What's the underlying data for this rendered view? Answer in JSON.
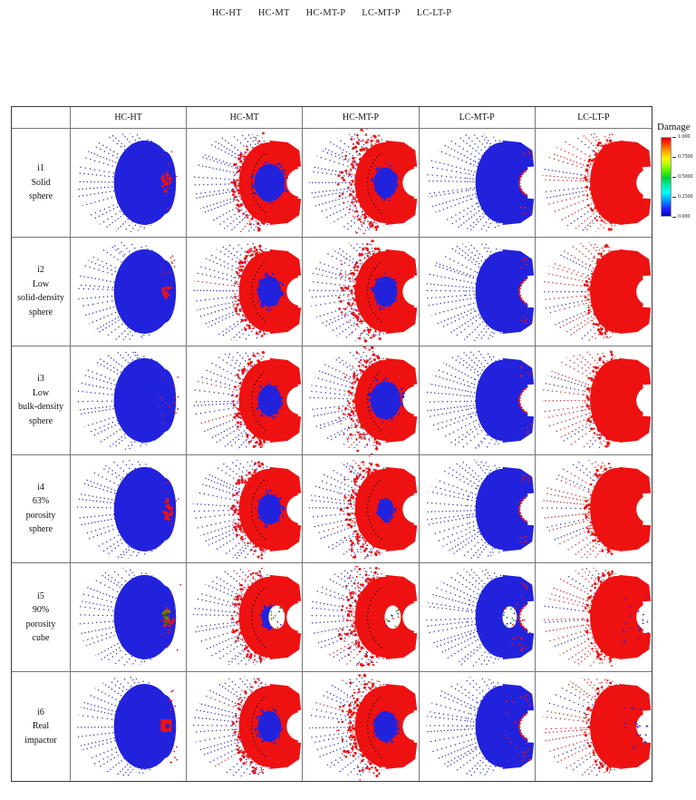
{
  "caption": {
    "items": [
      "HC-HT",
      "HC-MT",
      "HC-MT-P",
      "LC-MT-P",
      "LC-LT-P"
    ]
  },
  "table": {
    "columns": [
      "HC-HT",
      "HC-MT",
      "HC-MT-P",
      "LC-MT-P",
      "LC-LT-P"
    ],
    "rows": [
      {
        "lines": [
          "i1",
          "Solid",
          "sphere",
          ""
        ]
      },
      {
        "lines": [
          "i2",
          "Low",
          "solid-density",
          "sphere"
        ]
      },
      {
        "lines": [
          "i3",
          "Low",
          "bulk-density",
          "sphere"
        ]
      },
      {
        "lines": [
          "i4",
          "63%",
          "porosity",
          "sphere"
        ]
      },
      {
        "lines": [
          "i5",
          "90%",
          "porosity",
          "cube"
        ]
      },
      {
        "lines": [
          "i6",
          "Real",
          "impactor",
          ""
        ]
      }
    ]
  },
  "colorbar": {
    "title": "Damage",
    "tick_labels": [
      "1.000",
      "0.7500",
      "0.5000",
      "0.2500",
      "0.000"
    ]
  },
  "colors": {
    "blue": "#2222dd",
    "red": "#ee1111",
    "olive": "#7a7a10",
    "arc": "#101010"
  },
  "chart_data": {
    "type": "scatter",
    "title": "Damage",
    "grid_columns": [
      "HC-HT",
      "HC-MT",
      "HC-MT-P",
      "LC-MT-P",
      "LC-LT-P"
    ],
    "grid_rows": [
      "i1 Solid sphere",
      "i2 Low solid-density sphere",
      "i3 Low bulk-density sphere",
      "i4 63% porosity sphere",
      "i5 90% porosity cube",
      "i6 Real impactor"
    ],
    "colorbar": {
      "title": "Damage",
      "range": [
        0,
        1
      ],
      "tick_values": [
        1.0,
        0.75,
        0.5,
        0.25,
        0.0
      ],
      "tick_labels": [
        "1.000",
        "0.7500",
        "0.5000",
        "0.2500",
        "0.000"
      ],
      "colormap": "jet",
      "position": "right"
    },
    "point_colors": {
      "damage_high": "#ee1111",
      "damage_low": "#2222dd"
    },
    "cells": [
      [
        {
          "pattern": "blue-fan",
          "impact": "red-clump"
        },
        {
          "pattern": "damage-crater",
          "core": "big"
        },
        {
          "pattern": "damage-crater-streaks",
          "core": "med"
        },
        {
          "pattern": "blue-fan-rim"
        },
        {
          "pattern": "red-fan"
        }
      ],
      [
        {
          "pattern": "blue-fan",
          "impact": "red-clump-small"
        },
        {
          "pattern": "damage-crater",
          "core": "med"
        },
        {
          "pattern": "damage-crater-streaks",
          "core": "med"
        },
        {
          "pattern": "blue-fan-rim"
        },
        {
          "pattern": "red-fan"
        }
      ],
      [
        {
          "pattern": "blue-fan",
          "impact": "red-dots"
        },
        {
          "pattern": "damage-crater",
          "core": "med"
        },
        {
          "pattern": "damage-crater-streaks",
          "core": "big"
        },
        {
          "pattern": "blue-fan-rim"
        },
        {
          "pattern": "red-fan"
        }
      ],
      [
        {
          "pattern": "blue-fan",
          "impact": "red-clump"
        },
        {
          "pattern": "damage-crater",
          "core": "med"
        },
        {
          "pattern": "damage-crater-streaks",
          "core": "small"
        },
        {
          "pattern": "blue-fan-rim"
        },
        {
          "pattern": "red-fan"
        }
      ],
      [
        {
          "pattern": "blue-fan",
          "impact": "olive-blob"
        },
        {
          "pattern": "damage-crater",
          "core": "small",
          "gap": true
        },
        {
          "pattern": "damage-crater-streaks",
          "core": "none",
          "gap": true
        },
        {
          "pattern": "blue-fan-rim",
          "specks": true,
          "gap": true
        },
        {
          "pattern": "red-fan",
          "blue_specks": true
        }
      ],
      [
        {
          "pattern": "blue-fan",
          "impact": "red-square"
        },
        {
          "pattern": "damage-crater",
          "core": "med"
        },
        {
          "pattern": "damage-crater-streaks",
          "core": "med"
        },
        {
          "pattern": "blue-fan-rim",
          "specks": true
        },
        {
          "pattern": "red-fan",
          "blue_specks": true
        }
      ]
    ]
  }
}
